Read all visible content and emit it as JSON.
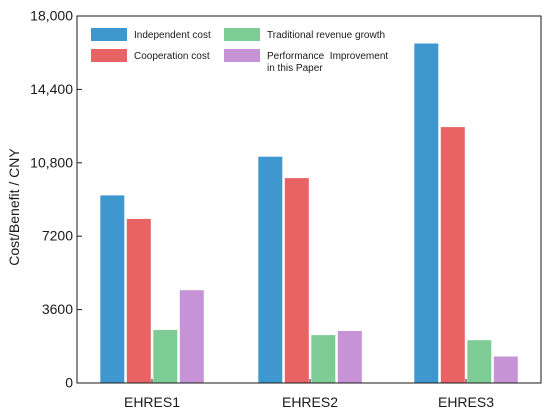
{
  "chart_data": {
    "type": "bar",
    "title": "",
    "xlabel": "",
    "ylabel": "Cost/Benefit / CNY",
    "categories": [
      "EHRES1",
      "EHRES2",
      "EHRES3"
    ],
    "ylim": [
      0,
      18000
    ],
    "yticks": [
      0,
      3600,
      7200,
      10800,
      14400,
      18000
    ],
    "ytick_labels": [
      "0",
      "3600",
      "7200",
      "10,800",
      "14,400",
      "18,000"
    ],
    "grid": false,
    "legend_position": "top-left",
    "legend_columns": 2,
    "series": [
      {
        "name": "Independent cost",
        "color": "#3f97cf",
        "values": [
          9200,
          11100,
          16650
        ]
      },
      {
        "name": "Cooperation cost",
        "color": "#e86464",
        "values": [
          8050,
          10050,
          12550
        ]
      },
      {
        "name": "Traditional revenue growth",
        "color": "#7ecc95",
        "values": [
          2600,
          2350,
          2100
        ]
      },
      {
        "name": "Performance  Improvement\nin this Paper",
        "color": "#c694d6",
        "values": [
          4550,
          2550,
          1300
        ]
      }
    ]
  }
}
